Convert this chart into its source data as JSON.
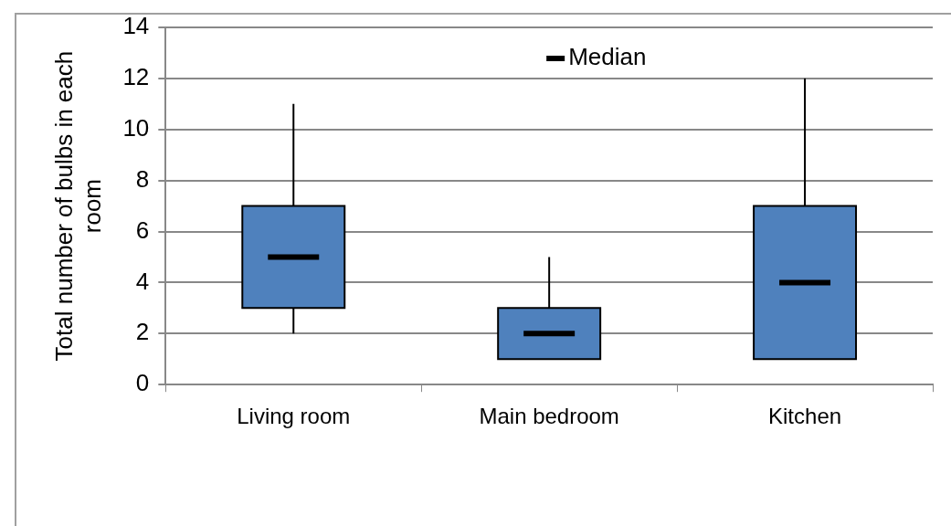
{
  "chart_data": {
    "type": "box",
    "ylabel": "Total number of bulbs in each room",
    "categories": [
      "Living room",
      "Main bedroom",
      "Kitchen"
    ],
    "color": "#4f81bd",
    "boxes": [
      {
        "low": 2,
        "q1": 3,
        "median": 5,
        "q3": 7,
        "high": 11
      },
      {
        "low": 1,
        "q1": 1,
        "median": 2,
        "q3": 3,
        "high": 5
      },
      {
        "low": 1,
        "q1": 1,
        "median": 4,
        "q3": 7,
        "high": 12
      }
    ],
    "ylim": [
      0,
      14
    ],
    "yticks": [
      0,
      2,
      4,
      6,
      8,
      10,
      12,
      14
    ],
    "grid": "y",
    "annotations": [
      "Median"
    ]
  }
}
